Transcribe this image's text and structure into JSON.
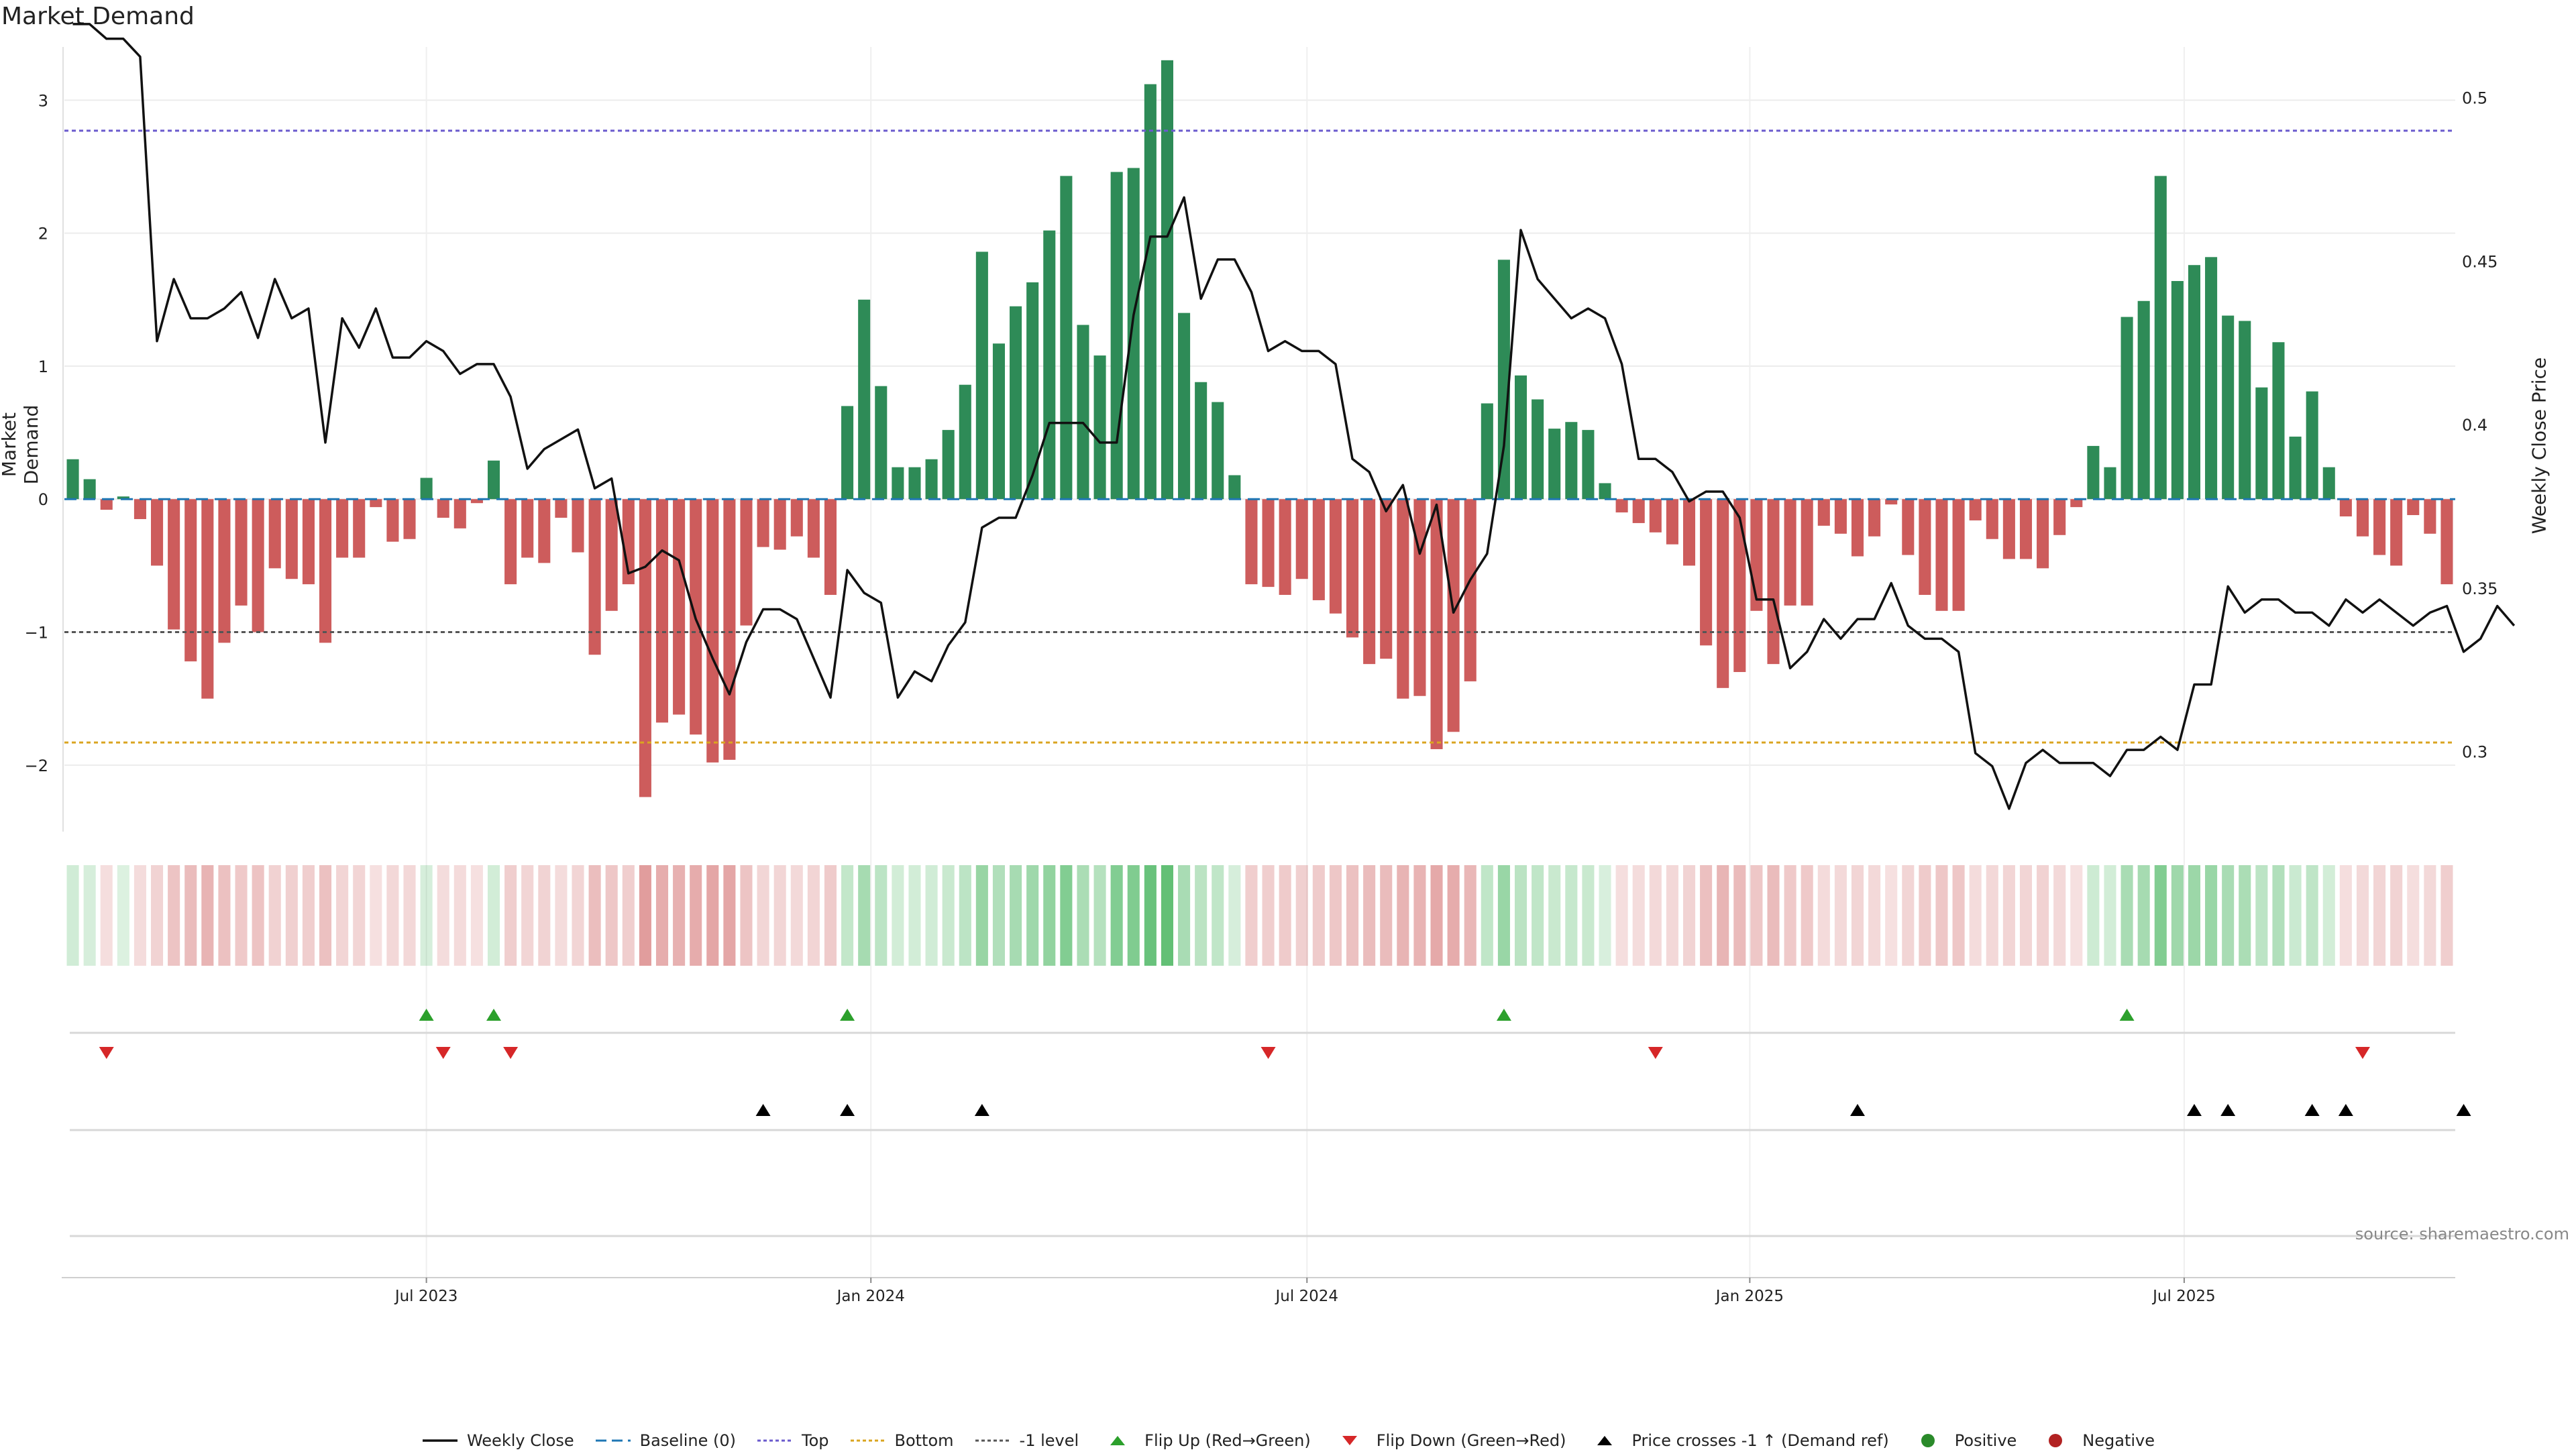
{
  "title": "Market Demand",
  "source": "source: sharemaestro.com",
  "colors": {
    "positive": "#2e8b57",
    "negative": "#cd5c5c",
    "price": "#111111",
    "top": "#6a5acd",
    "bottom": "#daa520",
    "minus1": "#555555",
    "baseline": "#1f77b4",
    "flip_up": "#2ca02c",
    "flip_down": "#d62728",
    "cross": "#000000",
    "positive_dot": "#2a8a2a",
    "negative_dot": "#b22222"
  },
  "chart_data": {
    "type": "bar",
    "title": "Market Demand",
    "ylabel": "Market Demand",
    "y2label": "Weekly Close Price",
    "ylim": [
      -2.5,
      3.4
    ],
    "y2lim": [
      0.2755,
      0.5155
    ],
    "yticks": [
      3,
      2,
      1,
      0,
      -1,
      -2
    ],
    "y2ticks": [
      0.5,
      0.45,
      0.4,
      0.35,
      0.3
    ],
    "ytick_labels": [
      "3",
      "2",
      "1",
      "0",
      "−1",
      "−2"
    ],
    "y2tick_labels": [
      "0.5",
      "0.45",
      "0.4",
      "0.35",
      "0.3"
    ],
    "xtick_labels": [
      "Jul 2023",
      "Jan 2024",
      "Jul 2024",
      "Jan 2025",
      "Jul 2025"
    ],
    "xtick_index": [
      21,
      47.4,
      73.3,
      99.6,
      125.4
    ],
    "reference_lines": {
      "top": 2.77,
      "bottom": -1.83,
      "minus1": -1.0,
      "baseline": 0
    },
    "demand": [
      0.3,
      0.15,
      -0.08,
      0.02,
      -0.15,
      -0.5,
      -0.98,
      -1.22,
      -1.5,
      -1.08,
      -0.8,
      -1.0,
      -0.52,
      -0.6,
      -0.64,
      -1.08,
      -0.44,
      -0.44,
      -0.06,
      -0.32,
      -0.3,
      0.16,
      -0.14,
      -0.22,
      -0.03,
      0.29,
      -0.64,
      -0.44,
      -0.48,
      -0.14,
      -0.4,
      -1.17,
      -0.84,
      -0.64,
      -2.24,
      -1.68,
      -1.62,
      -1.77,
      -1.98,
      -1.96,
      -0.95,
      -0.36,
      -0.38,
      -0.28,
      -0.44,
      -0.72,
      0.7,
      1.5,
      0.85,
      0.24,
      0.24,
      0.3,
      0.52,
      0.86,
      1.86,
      1.17,
      1.45,
      1.63,
      2.02,
      2.43,
      1.31,
      1.08,
      2.46,
      2.49,
      3.12,
      3.3,
      1.4,
      0.88,
      0.73,
      0.18,
      -0.64,
      -0.66,
      -0.72,
      -0.6,
      -0.76,
      -0.86,
      -1.04,
      -1.24,
      -1.2,
      -1.5,
      -1.48,
      -1.88,
      -1.75,
      -1.37,
      0.72,
      1.8,
      0.93,
      0.75,
      0.53,
      0.58,
      0.52,
      0.12,
      -0.1,
      -0.18,
      -0.25,
      -0.34,
      -0.5,
      -1.1,
      -1.42,
      -1.3,
      -0.84,
      -1.24,
      -0.8,
      -0.8,
      -0.2,
      -0.26,
      -0.43,
      -0.28,
      -0.04,
      -0.42,
      -0.72,
      -0.84,
      -0.84,
      -0.16,
      -0.3,
      -0.45,
      -0.45,
      -0.52,
      -0.27,
      -0.06,
      0.4,
      0.24,
      1.37,
      1.49,
      2.43,
      1.64,
      1.76,
      1.82,
      1.38,
      1.34,
      0.84,
      1.18,
      0.47,
      0.81,
      0.24,
      -0.13,
      -0.28,
      -0.42,
      -0.5,
      -0.12,
      -0.26,
      -0.64
    ],
    "close": [
      0.5225,
      0.5225,
      0.518,
      0.518,
      0.5125,
      0.4255,
      0.4445,
      0.4325,
      0.4325,
      0.4355,
      0.4405,
      0.4265,
      0.4445,
      0.4325,
      0.4355,
      0.3945,
      0.4325,
      0.4235,
      0.4355,
      0.4205,
      0.4205,
      0.4255,
      0.4225,
      0.4155,
      0.4185,
      0.4185,
      0.4085,
      0.3865,
      0.3925,
      0.3955,
      0.3985,
      0.3805,
      0.3835,
      0.3545,
      0.3565,
      0.3615,
      0.3585,
      0.3405,
      0.3285,
      0.3175,
      0.3335,
      0.3435,
      0.3435,
      0.3405,
      0.3285,
      0.3165,
      0.3555,
      0.3485,
      0.3455,
      0.3165,
      0.3245,
      0.3215,
      0.3325,
      0.3395,
      0.3685,
      0.3715,
      0.3715,
      0.3845,
      0.4005,
      0.4005,
      0.4005,
      0.3945,
      0.3945,
      0.4335,
      0.4575,
      0.4575,
      0.4695,
      0.4385,
      0.4505,
      0.4505,
      0.4405,
      0.4225,
      0.4255,
      0.4225,
      0.4225,
      0.4185,
      0.3895,
      0.3855,
      0.3735,
      0.3815,
      0.3605,
      0.3755,
      0.3425,
      0.3525,
      0.3605,
      0.3935,
      0.4595,
      0.4445,
      0.4385,
      0.4325,
      0.4355,
      0.4325,
      0.4185,
      0.3895,
      0.3895,
      0.3855,
      0.3765,
      0.3795,
      0.3795,
      0.3715,
      0.3465,
      0.3465,
      0.3255,
      0.3305,
      0.3405,
      0.3345,
      0.3405,
      0.3405,
      0.3515,
      0.3385,
      0.3345,
      0.3345,
      0.3305,
      0.2995,
      0.2955,
      0.2825,
      0.2965,
      0.3005,
      0.2965,
      0.2965,
      0.2965,
      0.2925,
      0.3005,
      0.3005,
      0.3045,
      0.3005,
      0.3205,
      0.3205,
      0.3505,
      0.3425,
      0.3465,
      0.3465,
      0.3425,
      0.3425,
      0.3385,
      0.3465,
      0.3425,
      0.3465,
      0.3425,
      0.3385,
      0.3425,
      0.3445,
      0.3305,
      0.3345,
      0.3445,
      0.3385
    ],
    "flip_up_index": [
      21,
      25,
      46,
      85,
      122
    ],
    "flip_down_index": [
      2,
      22,
      26,
      71,
      94,
      136
    ],
    "price_cross_index": [
      41,
      46,
      54,
      106,
      126,
      128,
      133,
      135,
      142
    ]
  },
  "legend": [
    {
      "key": "close",
      "label": "Weekly Close"
    },
    {
      "key": "baseline",
      "label": "Baseline (0)"
    },
    {
      "key": "top",
      "label": "Top"
    },
    {
      "key": "bottom",
      "label": "Bottom"
    },
    {
      "key": "minus1",
      "label": "-1 level"
    },
    {
      "key": "flip_up",
      "label": "Flip Up (Red→Green)"
    },
    {
      "key": "flip_down",
      "label": "Flip Down (Green→Red)"
    },
    {
      "key": "cross",
      "label": "Price crosses -1 ↑ (Demand ref)"
    },
    {
      "key": "positive",
      "label": "Positive"
    },
    {
      "key": "negative",
      "label": "Negative"
    }
  ]
}
